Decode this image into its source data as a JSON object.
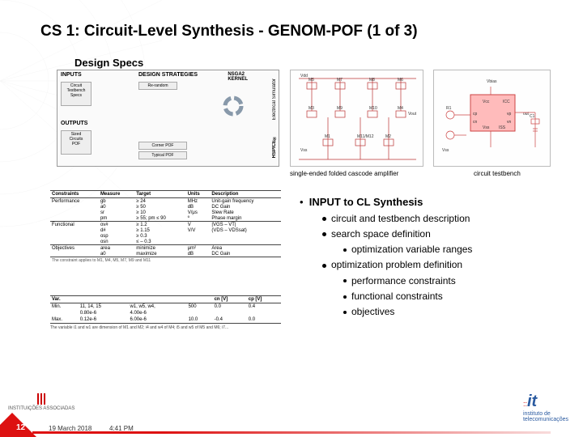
{
  "title": "CS 1: Circuit-Level Synthesis - GENOM-POF (1 of 3)",
  "design_specs": "Design Specs",
  "flowchart": {
    "inputs": "INPUTS",
    "design_strategies": "DESIGN STRATEGIES",
    "nsga": "NSGA2\nKERNEL",
    "outputs": "OUTPUTS",
    "sim_label": "Electrical Simulator",
    "hspice": "HSPICE®",
    "blocks": {
      "circuit_specs": "Circuit\nTestbench\nSpecs",
      "random": "Re-random",
      "sized_pof": "Sized\nCircuits\nPOF",
      "corner_pof": "Corner POF",
      "typical_pof": "Typical POF"
    }
  },
  "circuit_caption": "single-ended folded cascode amplifier",
  "testbench_caption": "circuit testbench",
  "spec_table": {
    "headers": [
      "Constraints",
      "Measure",
      "Target",
      "Units",
      "Description"
    ],
    "sections": [
      {
        "label": "Performance",
        "rows": [
          [
            "gb",
            "≥ 24",
            "MHz",
            "Unit-gain frequency"
          ],
          [
            "a0",
            "≥ 50",
            "dB",
            "DC Gain"
          ],
          [
            "sr",
            "≥ 10",
            "V/μs",
            "Slew Rate"
          ],
          [
            "pm",
            "≥ 55; pm ≤ 90",
            "º",
            "Phase margin"
          ]
        ]
      },
      {
        "label": "Functional",
        "rows": [
          [
            "ov#",
            "≥ 1.2",
            "V",
            "|VGS – VT|"
          ],
          [
            "d#",
            "≥ 1.15",
            "V/V",
            "(VDS – VDSsat)"
          ],
          [
            "osp",
            "≥ 0.3",
            "",
            ""
          ],
          [
            "osn",
            "≤ – 0.3",
            "",
            ""
          ]
        ]
      },
      {
        "label": "Objectives",
        "rows": [
          [
            "area",
            "minimize",
            "μm²",
            "Area"
          ],
          [
            "a0",
            "maximize",
            "dB",
            "DC Gain"
          ]
        ]
      }
    ],
    "note": "The constraint applies to M1, M4, M5, M7, M9 and M11"
  },
  "var_table": {
    "headers": [
      "Var.",
      "",
      "",
      "",
      "cn [V]",
      "cp [V]"
    ],
    "rows": [
      [
        "Min.",
        "11, 14, 15",
        "w1, w5, w4,",
        "500",
        "0.0",
        "0.4"
      ],
      [
        "",
        "0.80e-6",
        "4.00e-6",
        "",
        "",
        ""
      ],
      [
        "Max.",
        "0.12e-6",
        "6.00e-6",
        "10.0",
        "-0.4",
        "0.0"
      ]
    ],
    "note": "The variable i1 and w1 are dimension of M1 and M2; i4 and w4 of M4; i5 and w5 of M5 and M6; i7..."
  },
  "bullets": {
    "head": "INPUT to CL Synthesis",
    "items": [
      {
        "text": "circuit and testbench description",
        "level": 2
      },
      {
        "text": "search space definition",
        "level": 2
      },
      {
        "text": "optimization variable ranges",
        "level": 3
      },
      {
        "text": "optimization problem definition",
        "level": 2
      },
      {
        "text": "performance constraints",
        "level": 3
      },
      {
        "text": "functional constraints",
        "level": 3
      },
      {
        "text": "objectives",
        "level": 3
      }
    ]
  },
  "footer": {
    "page": "12",
    "date": "19 March 2018",
    "time": "4:41 PM"
  },
  "logos": {
    "left_label": "INSTITUIÇÕES ASSOCIADAS",
    "right_main": "it",
    "right_sub": "instituto de\ntelecomunicações"
  },
  "colors": {
    "red": "#d11",
    "blue": "#2a5aa0"
  }
}
